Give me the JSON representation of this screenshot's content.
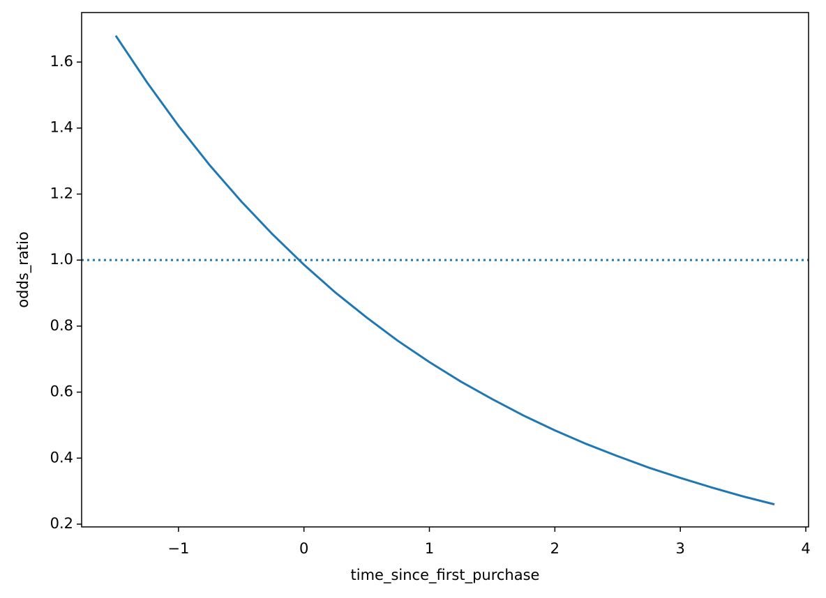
{
  "chart_data": {
    "type": "line",
    "xlabel": "time_since_first_purchase",
    "ylabel": "odds_ratio",
    "x": [
      -1.5,
      -1.25,
      -1,
      -0.75,
      -0.5,
      -0.25,
      0,
      0.25,
      0.5,
      0.75,
      1,
      1.25,
      1.5,
      1.75,
      2,
      2.25,
      2.5,
      2.75,
      3,
      3.25,
      3.5,
      3.75
    ],
    "series": [
      {
        "color": "#1f77b4",
        "values": [
          1.68,
          1.538,
          1.407,
          1.287,
          1.178,
          1.078,
          0.986,
          0.902,
          0.826,
          0.755,
          0.691,
          0.632,
          0.579,
          0.529,
          0.484,
          0.443,
          0.406,
          0.371,
          0.34,
          0.311,
          0.284,
          0.26
        ]
      }
    ],
    "hline": {
      "y": 1,
      "color": "#1f77b4",
      "style": "dotted"
    },
    "xlim": [
      -1.772,
      4.022
    ],
    "ylim": [
      0.1916,
      1.75
    ],
    "xticks": [
      {
        "value": -1,
        "label": "−1"
      },
      0,
      1,
      2,
      3,
      4
    ],
    "yticks": [
      0.2,
      0.4,
      0.6,
      0.8,
      {
        "value": 1,
        "label": "1.0"
      },
      1.2,
      1.4,
      1.6
    ],
    "grid": false
  }
}
